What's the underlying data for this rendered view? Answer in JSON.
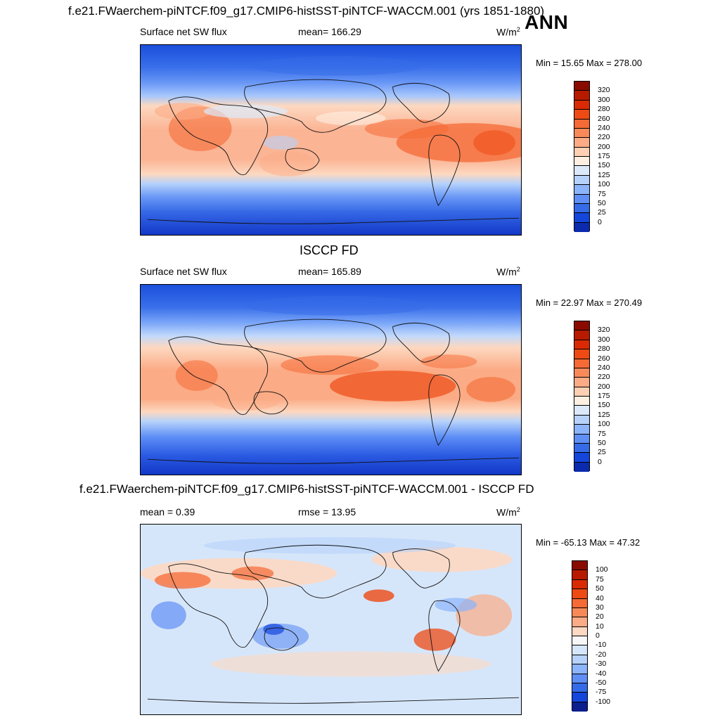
{
  "header": {
    "title": "f.e21.FWaerchem-piNTCF.f09_g17.CMIP6-histSST-piNTCF-WACCM.001 (yrs 1851-1880)",
    "season": "ANN"
  },
  "panels": [
    {
      "id": "model",
      "title": "",
      "left_label": "Surface net SW flux",
      "center_label": "mean= 166.29",
      "units": "W/m",
      "units_exp": "2",
      "minmax": "Min =  15.65 Max = 278.00",
      "colorbar": {
        "levels": [
          "320",
          "300",
          "280",
          "260",
          "240",
          "220",
          "200",
          "175",
          "150",
          "125",
          "100",
          "75",
          "50",
          "25",
          "0"
        ],
        "colors": [
          "#8b0a00",
          "#b81a00",
          "#d92a05",
          "#ee4a14",
          "#f56a35",
          "#f88a5a",
          "#fbab85",
          "#fdd0b4",
          "#fdf0e2",
          "#dbe9fa",
          "#b6d2fb",
          "#8cb4fb",
          "#5f8ff5",
          "#356be8",
          "#1446dc",
          "#0b2aae"
        ]
      },
      "region_labels": []
    },
    {
      "id": "obs",
      "title": "ISCCP FD",
      "left_label": "Surface net SW flux",
      "center_label": "mean= 165.89",
      "units": "W/m",
      "units_exp": "2",
      "minmax": "Min =  22.97 Max = 270.49",
      "colorbar": {
        "levels": [
          "320",
          "300",
          "280",
          "260",
          "240",
          "220",
          "200",
          "175",
          "150",
          "125",
          "100",
          "75",
          "50",
          "25",
          "0"
        ],
        "colors": [
          "#8b0a00",
          "#b81a00",
          "#d92a05",
          "#ee4a14",
          "#f56a35",
          "#f88a5a",
          "#fbab85",
          "#fdd0b4",
          "#fdf0e2",
          "#dbe9fa",
          "#b6d2fb",
          "#8cb4fb",
          "#5f8ff5",
          "#356be8",
          "#1446dc",
          "#0b2aae"
        ]
      }
    },
    {
      "id": "diff",
      "title": "f.e21.FWaerchem-piNTCF.f09_g17.CMIP6-histSST-piNTCF-WACCM.001 - ISCCP FD",
      "left_label": "mean =   0.39",
      "center_label": "rmse =  13.95",
      "units": "W/m",
      "units_exp": "2",
      "minmax": "Min = -65.13 Max =  47.32",
      "colorbar": {
        "levels": [
          "100",
          "75",
          "50",
          "40",
          "30",
          "20",
          "10",
          "0",
          "-10",
          "-20",
          "-30",
          "-40",
          "-50",
          "-75",
          "-100"
        ],
        "colors": [
          "#8b0a00",
          "#b81a00",
          "#d92a05",
          "#ee4a14",
          "#f56a35",
          "#f88a5a",
          "#fbab85",
          "#fdd8c2",
          "#f7f7f7",
          "#d6e6fa",
          "#b6d2fb",
          "#8cb4fb",
          "#5f8ff5",
          "#356be8",
          "#1446dc",
          "#0b1f8e"
        ]
      }
    }
  ]
}
